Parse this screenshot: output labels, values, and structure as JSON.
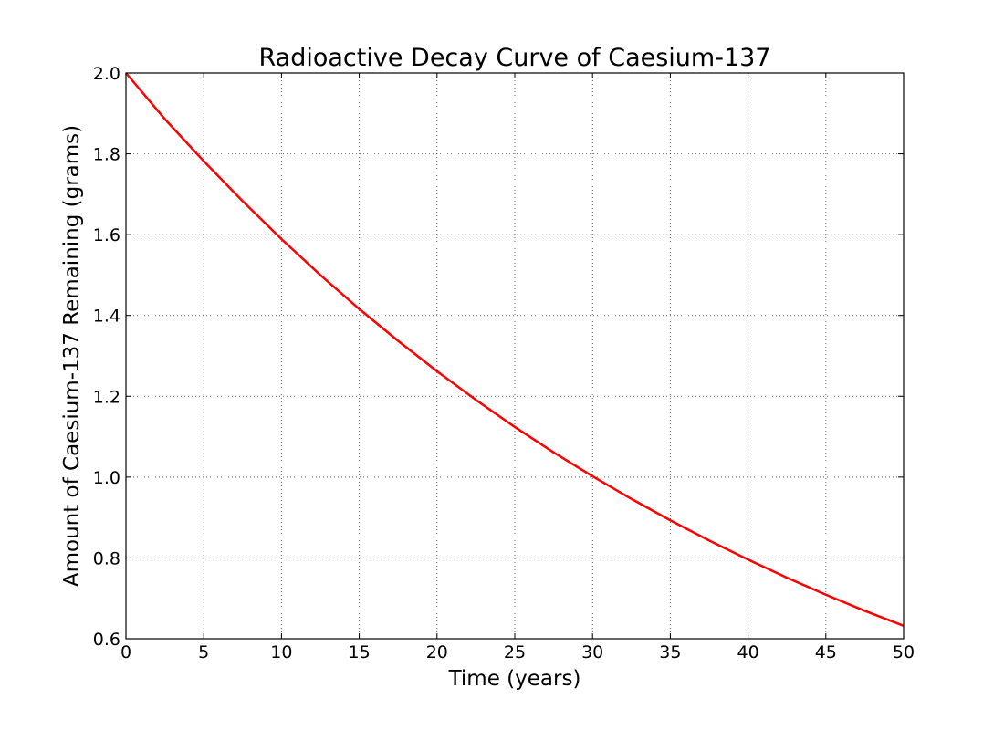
{
  "chart_data": {
    "type": "line",
    "title": "Radioactive Decay Curve of Caesium-137",
    "xlabel": "Time (years)",
    "ylabel": "Amount of Caesium-137 Remaining (grams)",
    "xlim": [
      0,
      50
    ],
    "ylim": [
      0.6,
      2.0
    ],
    "x_ticks": [
      0,
      5,
      10,
      15,
      20,
      25,
      30,
      35,
      40,
      45,
      50
    ],
    "x_tick_labels": [
      "0",
      "5",
      "10",
      "15",
      "20",
      "25",
      "30",
      "35",
      "40",
      "45",
      "50"
    ],
    "y_ticks": [
      0.6,
      0.8,
      1.0,
      1.2,
      1.4,
      1.6,
      1.8,
      2.0
    ],
    "y_tick_labels": [
      "0.6",
      "0.8",
      "1.0",
      "1.2",
      "1.4",
      "1.6",
      "1.8",
      "2.0"
    ],
    "grid": true,
    "series": [
      {
        "color": "#ff0000",
        "x": [
          0,
          2.5,
          5,
          7.5,
          10,
          12.5,
          15,
          17.5,
          20,
          22.5,
          25,
          27.5,
          30,
          32.5,
          35,
          37.5,
          40,
          42.5,
          45,
          47.5,
          50
        ],
        "y": [
          2.0,
          1.886,
          1.782,
          1.683,
          1.589,
          1.5,
          1.416,
          1.337,
          1.262,
          1.191,
          1.124,
          1.061,
          1.002,
          0.946,
          0.893,
          0.843,
          0.796,
          0.751,
          0.709,
          0.669,
          0.632
        ]
      }
    ]
  }
}
